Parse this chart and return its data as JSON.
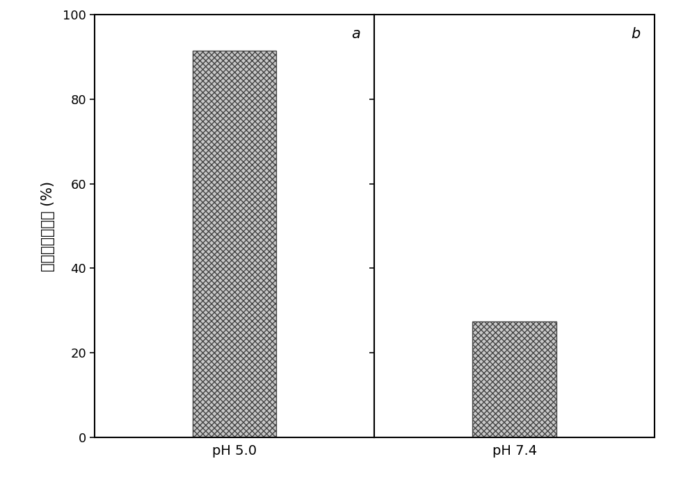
{
  "panels": [
    {
      "label": "a",
      "xlabel": "pH 5.0",
      "value": 91.5
    },
    {
      "label": "b",
      "xlabel": "pH 7.4",
      "value": 27.5
    }
  ],
  "ylabel": "溶脹平衡吸水率 (%)",
  "ylim": [
    0,
    100
  ],
  "yticks": [
    0,
    20,
    40,
    60,
    80,
    100
  ],
  "bar_color": "#c8c8c8",
  "bar_edgecolor": "#444444",
  "hatch": "xxxx",
  "bar_width": 0.3,
  "background_color": "#ffffff",
  "panel_label_fontsize": 15,
  "ylabel_fontsize": 15,
  "xlabel_fontsize": 14,
  "tick_fontsize": 13,
  "figure_width": 9.7,
  "figure_height": 7.0,
  "dpi": 100
}
